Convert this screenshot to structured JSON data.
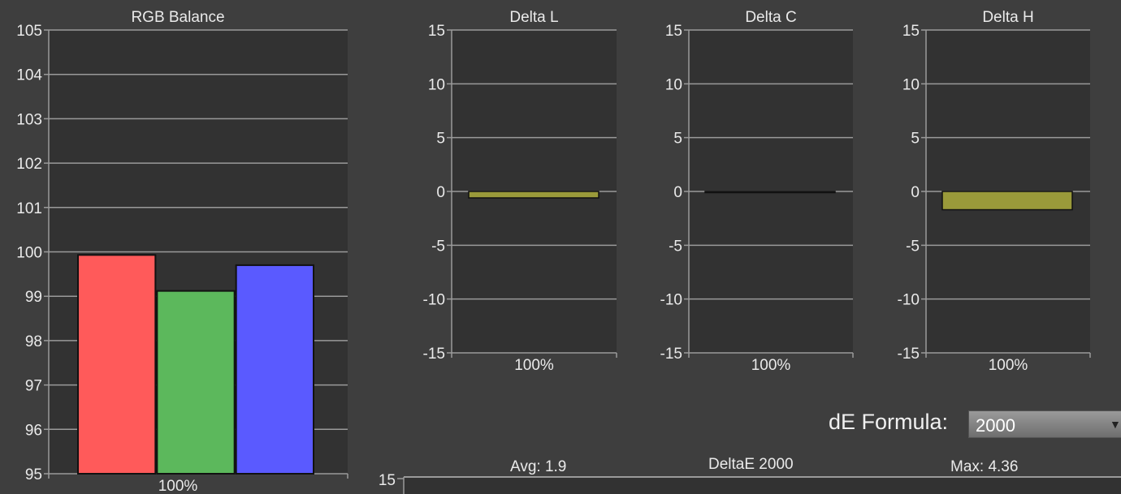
{
  "chart_data": [
    {
      "type": "bar",
      "title": "RGB Balance",
      "categories": [
        "100%"
      ],
      "series": [
        {
          "values": [
            99.93
          ],
          "color": "#ff5a5a"
        },
        {
          "values": [
            99.12
          ],
          "color": "#5cb85c"
        },
        {
          "values": [
            99.7
          ],
          "color": "#5a5aff"
        }
      ],
      "ylim": [
        95,
        105
      ],
      "yticks": [
        "95",
        "96",
        "97",
        "98",
        "99",
        "100",
        "101",
        "102",
        "103",
        "104",
        "105"
      ],
      "grid": true
    },
    {
      "type": "bar",
      "title": "Delta L",
      "categories": [
        "100%"
      ],
      "values": [
        -0.6
      ],
      "color": "#9a9a3a",
      "ylim": [
        -15,
        15
      ],
      "yticks": [
        "-15",
        "-10",
        "-5",
        "0",
        "5",
        "10",
        "15"
      ],
      "grid": true
    },
    {
      "type": "bar",
      "title": "Delta C",
      "categories": [
        "100%"
      ],
      "values": [
        0.0
      ],
      "color": "#9a9a3a",
      "ylim": [
        -15,
        15
      ],
      "yticks": [
        "-15",
        "-10",
        "-5",
        "0",
        "5",
        "10",
        "15"
      ],
      "grid": true
    },
    {
      "type": "bar",
      "title": "Delta H",
      "categories": [
        "100%"
      ],
      "values": [
        -1.7
      ],
      "color": "#9a9a3a",
      "ylim": [
        -15,
        15
      ],
      "yticks": [
        "-15",
        "-10",
        "-5",
        "0",
        "5",
        "10",
        "15"
      ],
      "grid": true
    },
    {
      "type": "bar",
      "title": "DeltaE 2000",
      "avg_label": "Avg: 1.9",
      "max_label": "Max: 4.36",
      "yticks": [
        "15"
      ]
    }
  ],
  "formula": {
    "label": "dE Formula:",
    "value": "2000"
  },
  "colors": {
    "background": "#3e3e3e",
    "plot_background": "#323232",
    "grid": "#9a9a9a"
  }
}
